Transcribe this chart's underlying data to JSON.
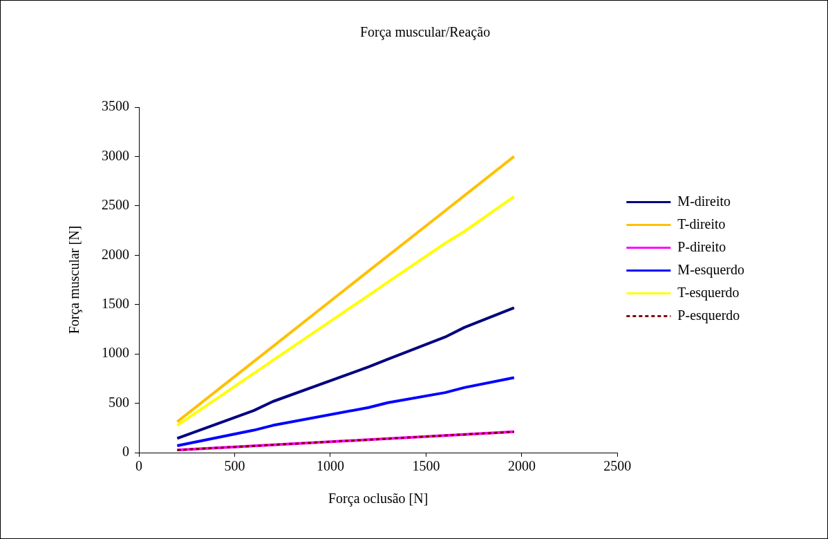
{
  "chart_data": {
    "type": "line",
    "title": "Força muscular/Reação",
    "xlabel": "Força oclusão [N]",
    "ylabel": "Força muscular [N]",
    "x": [
      200,
      600,
      700,
      1200,
      1300,
      1600,
      1700,
      1960
    ],
    "xlim": [
      0,
      2500
    ],
    "xticks": [
      0,
      500,
      1000,
      1500,
      2000,
      2500
    ],
    "ylim": [
      0,
      3500
    ],
    "yticks": [
      0,
      500,
      1000,
      1500,
      2000,
      2500,
      3000,
      3500
    ],
    "grid": false,
    "legend": "right",
    "marker": "none",
    "line_style": "solid",
    "series": [
      {
        "name": "M-direito",
        "color": "#000080",
        "values": [
          145,
          426,
          518,
          869,
          946,
          1171,
          1268,
          1467
        ]
      },
      {
        "name": "T-direito",
        "color": "#ffc000",
        "values": [
          312,
          923,
          1075,
          1840,
          1992,
          2450,
          2603,
          3000
        ]
      },
      {
        "name": "P-direito",
        "color": "#ff00ff",
        "values": [
          26,
          68,
          79,
          131,
          142,
          173,
          184,
          211
        ]
      },
      {
        "name": "M-esquerdo",
        "color": "#0000ff",
        "values": [
          70,
          227,
          276,
          457,
          506,
          608,
          659,
          760
        ]
      },
      {
        "name": "T-esquerdo",
        "color": "#ffff00",
        "values": [
          276,
          803,
          935,
          1594,
          1726,
          2121,
          2240,
          2595
        ]
      },
      {
        "name": "P-esquerdo",
        "color": "#800000",
        "line_style": "dashed",
        "values": [
          26,
          68,
          79,
          131,
          142,
          173,
          184,
          211
        ]
      }
    ]
  }
}
